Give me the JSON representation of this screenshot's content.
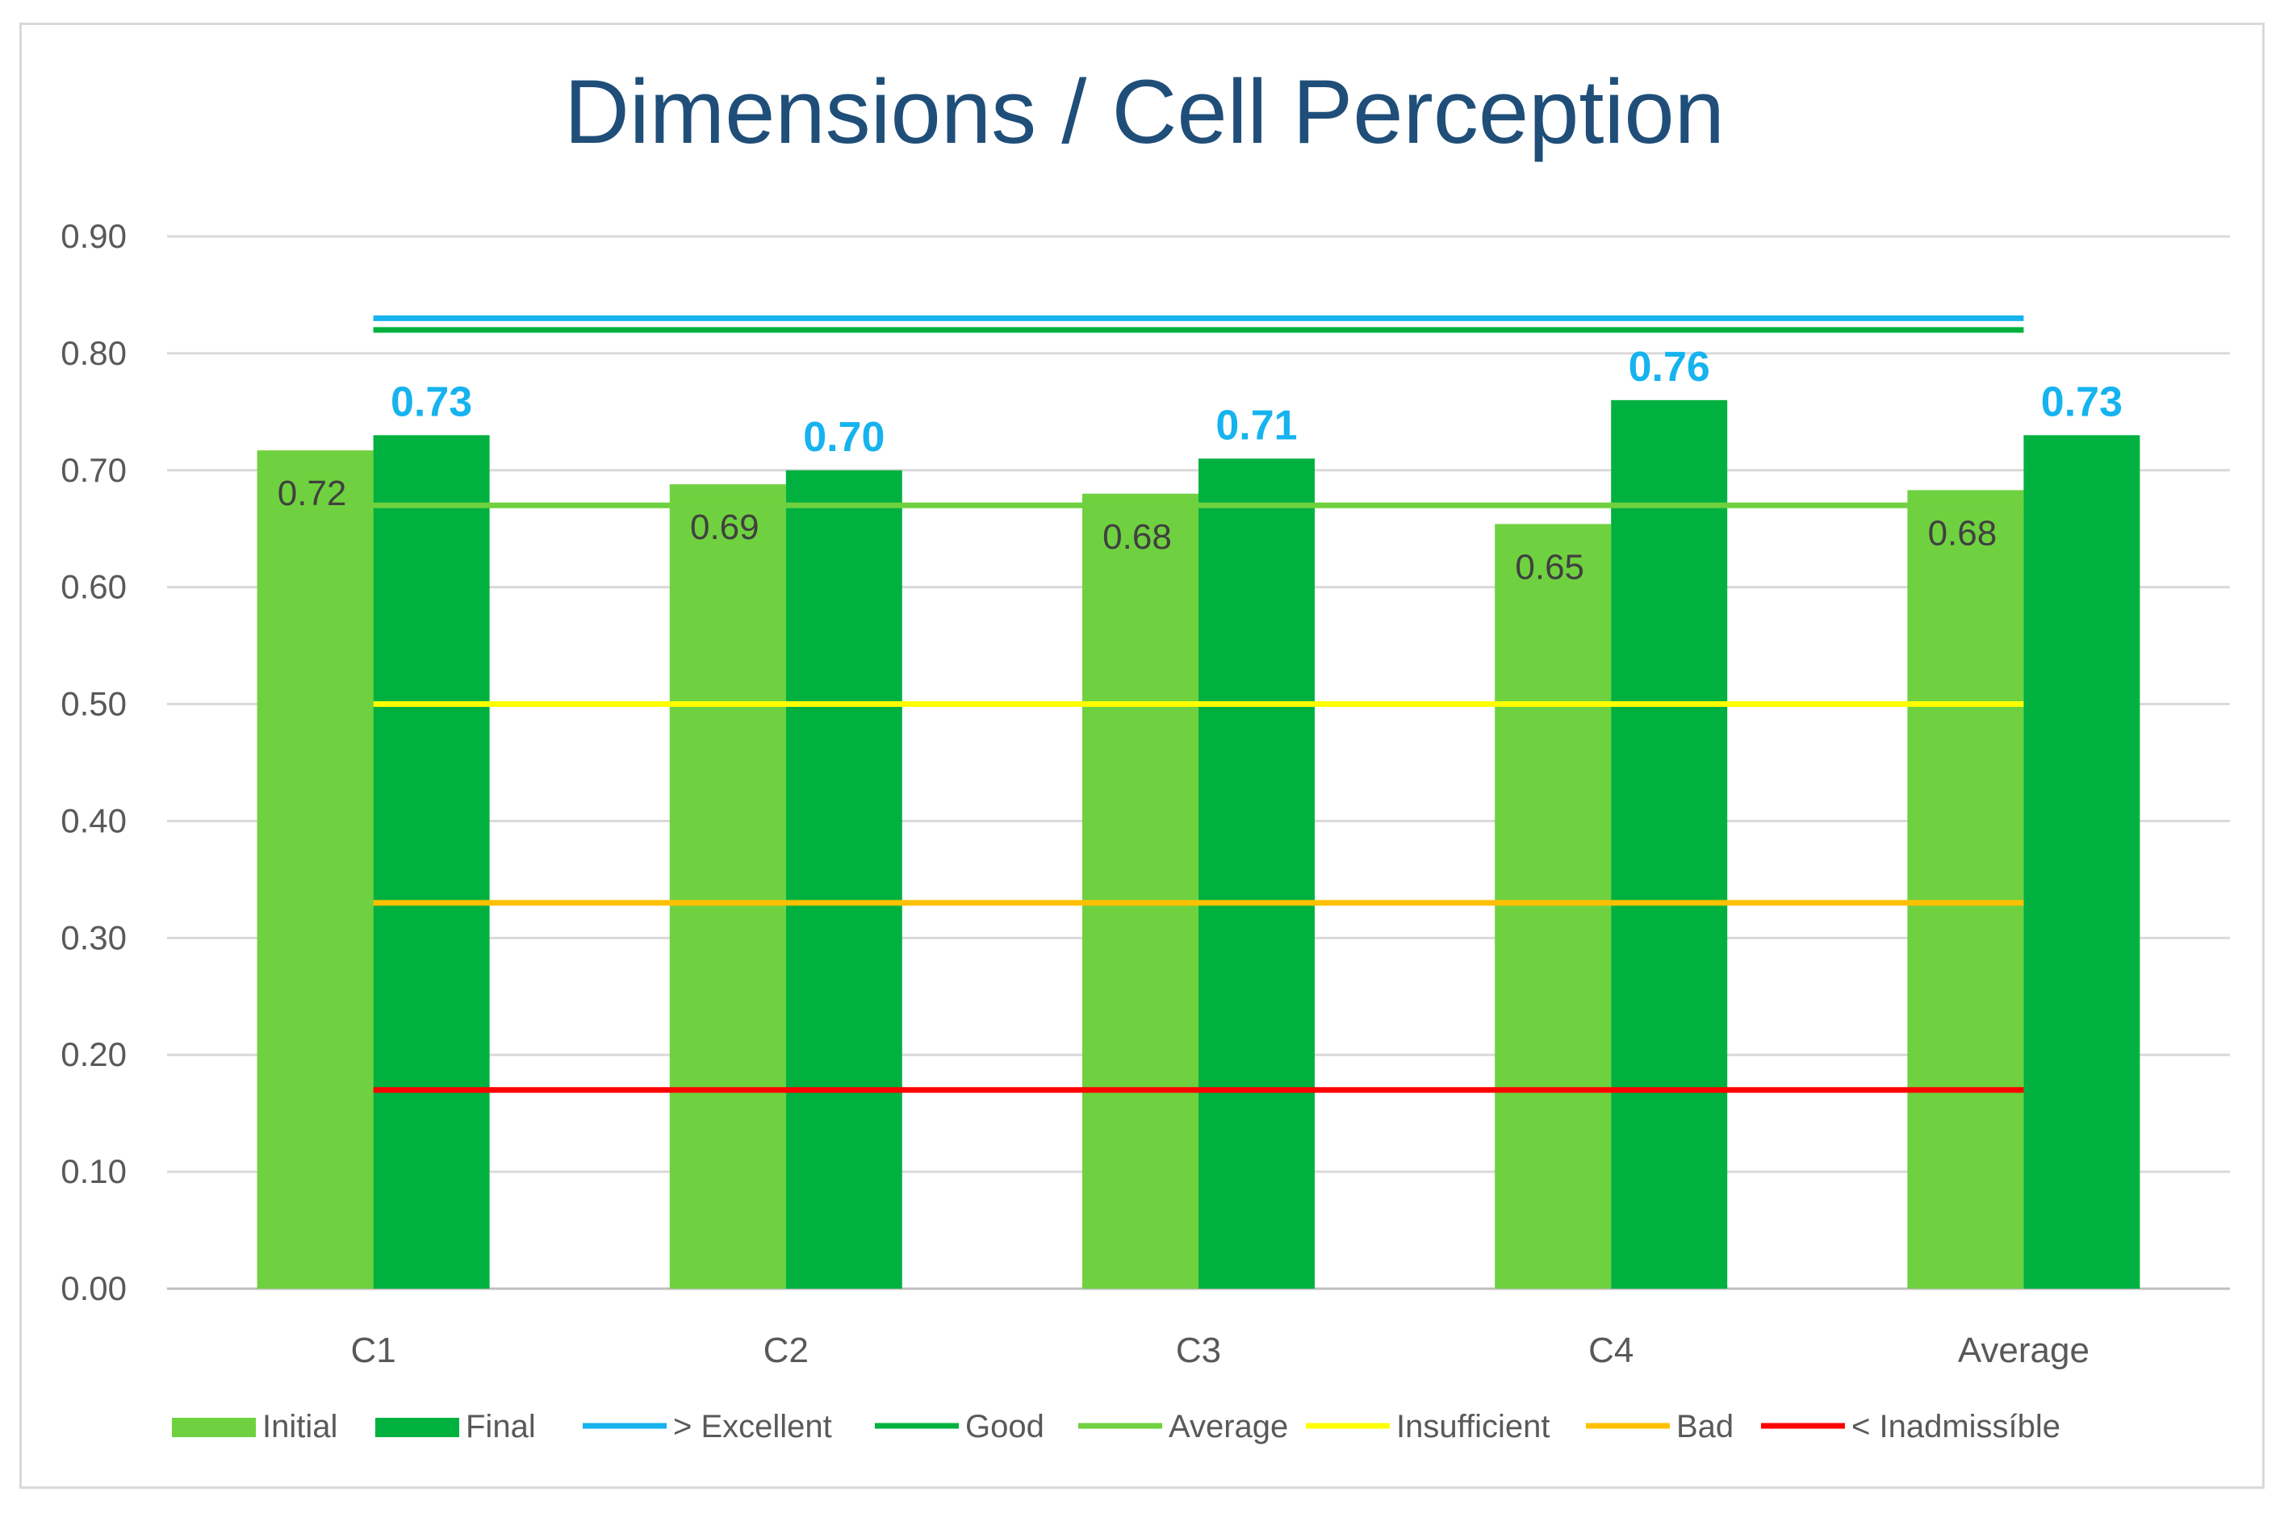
{
  "chart_data": {
    "type": "bar",
    "title": "Dimensions / Cell Perception",
    "xlabel": "",
    "ylabel": "",
    "ylim": [
      0,
      0.9
    ],
    "y_ticks": [
      "0.00",
      "0.10",
      "0.20",
      "0.30",
      "0.40",
      "0.50",
      "0.60",
      "0.70",
      "0.80",
      "0.90"
    ],
    "categories": [
      "C1",
      "C2",
      "C3",
      "C4",
      "Average"
    ],
    "series": [
      {
        "name": "Initial",
        "values": [
          0.717,
          0.688,
          0.68,
          0.654,
          0.683
        ],
        "labels": [
          "0.72",
          "0.69",
          "0.68",
          "0.65",
          "0.68"
        ],
        "color": "#6fd13f"
      },
      {
        "name": "Final",
        "values": [
          0.73,
          0.7,
          0.71,
          0.76,
          0.73
        ],
        "labels": [
          "0.73",
          "0.70",
          "0.71",
          "0.76",
          "0.73"
        ],
        "color": "#00b140",
        "label_color": "#16b3ef"
      }
    ],
    "reference_lines": [
      {
        "name": "> Excellent",
        "value": 0.83,
        "color": "#16b3ef"
      },
      {
        "name": "Good",
        "value": 0.82,
        "color": "#00b140"
      },
      {
        "name": "Average",
        "value": 0.67,
        "color": "#6fd13f"
      },
      {
        "name": "Insufficient",
        "value": 0.5,
        "color": "#ffff00"
      },
      {
        "name": "Bad",
        "value": 0.33,
        "color": "#ffc000"
      },
      {
        "name": "< Inadmissíble",
        "value": 0.17,
        "color": "#ff0000"
      }
    ],
    "grid": true,
    "legend_position": "bottom"
  }
}
